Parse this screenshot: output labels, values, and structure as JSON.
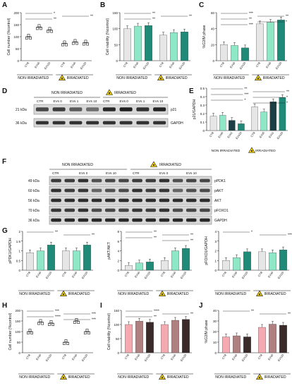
{
  "colors": {
    "ctr": "#e6e6e6",
    "evs0": "#8ee8c8",
    "evs10": "#1f8a78",
    "ctr_irr": "#e6e6e6",
    "evs0_irr": "#8ee8c8",
    "evs10_irr": "#1f8a78",
    "evs1": "#1c3f45",
    "pink": "#f4aab0",
    "brown": "#b08080",
    "dark": "#3a2a2a",
    "warn": "#f5d000"
  },
  "groups": {
    "non_irr": "NON IRRADIATED",
    "irr": "IRRADIATED"
  },
  "panels": {
    "A": {
      "letter": "A",
      "ylabel": "Cell number (%control)"
    },
    "B": {
      "letter": "B",
      "ylabel": "Cell viability (%control)"
    },
    "C": {
      "letter": "C",
      "ylabel": "%G2/M phase"
    },
    "D": {
      "letter": "D",
      "kda1": "21 kDa",
      "kda2": "36 kDa",
      "p21": "p21",
      "gapdh": "GAPDH",
      "lanes": [
        "CTR",
        "EVs 0",
        "EVs 1",
        "EVs 10",
        "CTR",
        "EVs 0",
        "EVs 1",
        "EVs 10"
      ]
    },
    "E": {
      "letter": "E",
      "ylabel": "p21/GAPDH"
    },
    "F": {
      "letter": "F",
      "lanes": [
        "CTR",
        "EVs 0",
        "EVs 10",
        "CTR",
        "EVs 0",
        "EVs 10"
      ],
      "kdas": [
        "49 kDa",
        "60 kDa",
        "56 kDa",
        "70 kDa",
        "36 kDa"
      ],
      "proteins": [
        "pPDK1",
        "pAKT",
        "AKT",
        "pFOXO1",
        "GAPDH"
      ]
    },
    "G": {
      "letter": "G",
      "ylabels": [
        "pPDK1/GAPDH",
        "pAKT/AKT",
        "pFOXO1/GAPDH"
      ]
    },
    "H": {
      "letter": "H",
      "ylabel": "Cell number (%control)"
    },
    "I": {
      "letter": "I",
      "ylabel": "Cell viability (%control)"
    },
    "J": {
      "letter": "J",
      "ylabel": "%G2/M phase"
    }
  },
  "chart_data": [
    {
      "panel": "A",
      "type": "scatter",
      "ylim": [
        0,
        200
      ],
      "yticks": [
        0,
        50,
        100,
        150,
        200
      ],
      "categories": [
        "CTR",
        "EVs0",
        "EVs10",
        "CTR",
        "EVs0",
        "EVs10"
      ],
      "values": [
        100,
        140,
        128,
        72,
        78,
        75
      ],
      "marker": [
        "square",
        "triangle",
        "triangle",
        "circle",
        "square",
        "triangle"
      ],
      "annotations": [
        "*",
        "**",
        "**"
      ]
    },
    {
      "panel": "B",
      "type": "bar",
      "ylim": [
        0,
        150
      ],
      "yticks": [
        0,
        50,
        100,
        150
      ],
      "categories": [
        "CTR",
        "EVs0",
        "EVs10",
        "CTR",
        "EVs0",
        "EVs10"
      ],
      "values": [
        100,
        108,
        110,
        80,
        88,
        90
      ],
      "annotations": [
        "**",
        "**",
        "**"
      ]
    },
    {
      "panel": "C",
      "type": "bar",
      "ylim": [
        0,
        60
      ],
      "yticks": [
        0,
        20,
        40,
        60
      ],
      "categories": [
        "CTR",
        "EVs0",
        "EVs10",
        "CTR",
        "EVs0",
        "EVs10"
      ],
      "values": [
        20,
        19,
        16,
        46,
        48,
        51
      ],
      "annotations": [
        "***",
        "**",
        "**",
        "*",
        "***"
      ]
    },
    {
      "panel": "E",
      "type": "bar",
      "ylim": [
        0,
        0.5
      ],
      "yticks": [
        0.0,
        0.1,
        0.2,
        0.3,
        0.4,
        0.5
      ],
      "categories": [
        "CTR",
        "EVs0",
        "EVs1",
        "EVs10",
        "CTR",
        "EVs0",
        "EVs1",
        "EVs10"
      ],
      "values": [
        0.17,
        0.18,
        0.12,
        0.08,
        0.28,
        0.22,
        0.34,
        0.39
      ],
      "annotations": [
        "**",
        "**",
        "***",
        "*",
        "*",
        "*"
      ]
    },
    {
      "panel": "G1",
      "type": "bar",
      "ylim": [
        0,
        2.0
      ],
      "yticks": [
        0.0,
        0.5,
        1.0,
        1.5,
        2.0
      ],
      "categories": [
        "CTR",
        "EVs0",
        "EVs10",
        "CTR",
        "EVs0",
        "EVs10"
      ],
      "values": [
        0.9,
        1.0,
        1.3,
        1.0,
        1.0,
        1.3
      ],
      "annotations": [
        "**",
        "**"
      ]
    },
    {
      "panel": "G2",
      "type": "bar",
      "ylim": [
        0,
        8
      ],
      "yticks": [
        0,
        2,
        4,
        6,
        8
      ],
      "categories": [
        "CTR",
        "EVs0",
        "EVs10",
        "CTR",
        "EVs0",
        "EVs10"
      ],
      "values": [
        1.0,
        1.5,
        1.7,
        2.0,
        4.0,
        4.5
      ],
      "annotations": [
        "**",
        "**",
        "**",
        "**"
      ]
    },
    {
      "panel": "G3",
      "type": "bar",
      "ylim": [
        0,
        4
      ],
      "yticks": [
        0,
        1,
        2,
        3,
        4
      ],
      "categories": [
        "CTR",
        "EVs0",
        "EVs10",
        "CTR",
        "EVs0",
        "EVs10"
      ],
      "values": [
        1.0,
        1.3,
        1.9,
        1.9,
        1.8,
        2.1
      ],
      "annotations": [
        "*",
        "****"
      ]
    },
    {
      "panel": "H",
      "type": "scatter",
      "ylim": [
        0,
        200
      ],
      "yticks": [
        0,
        50,
        100,
        150,
        200
      ],
      "categories": [
        "CTR",
        "EVs0",
        "EVs10",
        "CTR",
        "EVs0",
        "EVs10"
      ],
      "values": [
        100,
        145,
        140,
        50,
        150,
        100
      ],
      "annotations": [
        "***",
        "***",
        "****",
        "***"
      ]
    },
    {
      "panel": "I",
      "type": "bar",
      "ylim": [
        0,
        150
      ],
      "yticks": [
        0,
        50,
        100,
        150
      ],
      "categories": [
        "CTR",
        "EVs0",
        "EVs10",
        "CTR",
        "EVs0",
        "EVs10"
      ],
      "values": [
        100,
        112,
        108,
        100,
        115,
        118
      ],
      "annotations": [
        "****",
        "**",
        "**"
      ]
    },
    {
      "panel": "J",
      "type": "bar",
      "ylim": [
        0,
        40
      ],
      "yticks": [
        0,
        10,
        20,
        30,
        40
      ],
      "categories": [
        "CTR",
        "EVs0",
        "EVs10",
        "CTR",
        "EVs0",
        "EVs10"
      ],
      "values": [
        15,
        16,
        15,
        24,
        27,
        26
      ],
      "annotations": [
        "**",
        "**"
      ]
    }
  ]
}
